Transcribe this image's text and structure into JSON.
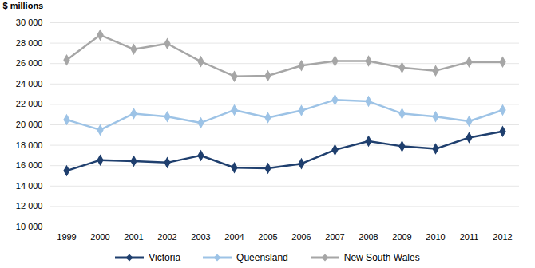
{
  "chart_data": {
    "type": "line",
    "y_label": "$ millions",
    "categories": [
      "1999",
      "2000",
      "2001",
      "2002",
      "2003",
      "2004",
      "2005",
      "2006",
      "2007",
      "2008",
      "2009",
      "2010",
      "2011",
      "2012"
    ],
    "series": [
      {
        "name": "Victoria",
        "color": "#1f3f6e",
        "marker": "diamond",
        "values": [
          15500,
          16550,
          16450,
          16300,
          17000,
          15800,
          15750,
          16200,
          17550,
          18400,
          17900,
          17650,
          18750,
          19350
        ]
      },
      {
        "name": "Queensland",
        "color": "#9dc3e6",
        "marker": "diamond",
        "values": [
          20500,
          19500,
          21100,
          20800,
          20200,
          21450,
          20700,
          21400,
          22450,
          22300,
          21100,
          20800,
          20350,
          21450
        ]
      },
      {
        "name": "New South Wales",
        "color": "#a6a6a6",
        "marker": "diamond",
        "values": [
          26350,
          28800,
          27400,
          27950,
          26200,
          24750,
          24800,
          25800,
          26250,
          26250,
          25600,
          25300,
          26150,
          26150
        ]
      }
    ],
    "ylim": [
      10000,
      30000
    ],
    "yticks": [
      {
        "value": 10000,
        "label": "10 000"
      },
      {
        "value": 12000,
        "label": "12 000"
      },
      {
        "value": 14000,
        "label": "14 000"
      },
      {
        "value": 16000,
        "label": "16 000"
      },
      {
        "value": 18000,
        "label": "18 000"
      },
      {
        "value": 20000,
        "label": "20 000"
      },
      {
        "value": 22000,
        "label": "22 000"
      },
      {
        "value": 24000,
        "label": "24 000"
      },
      {
        "value": 26000,
        "label": "26 000"
      },
      {
        "value": 28000,
        "label": "28 000"
      },
      {
        "value": 30000,
        "label": "30 000"
      }
    ],
    "grid": true,
    "legend": "bottom"
  }
}
